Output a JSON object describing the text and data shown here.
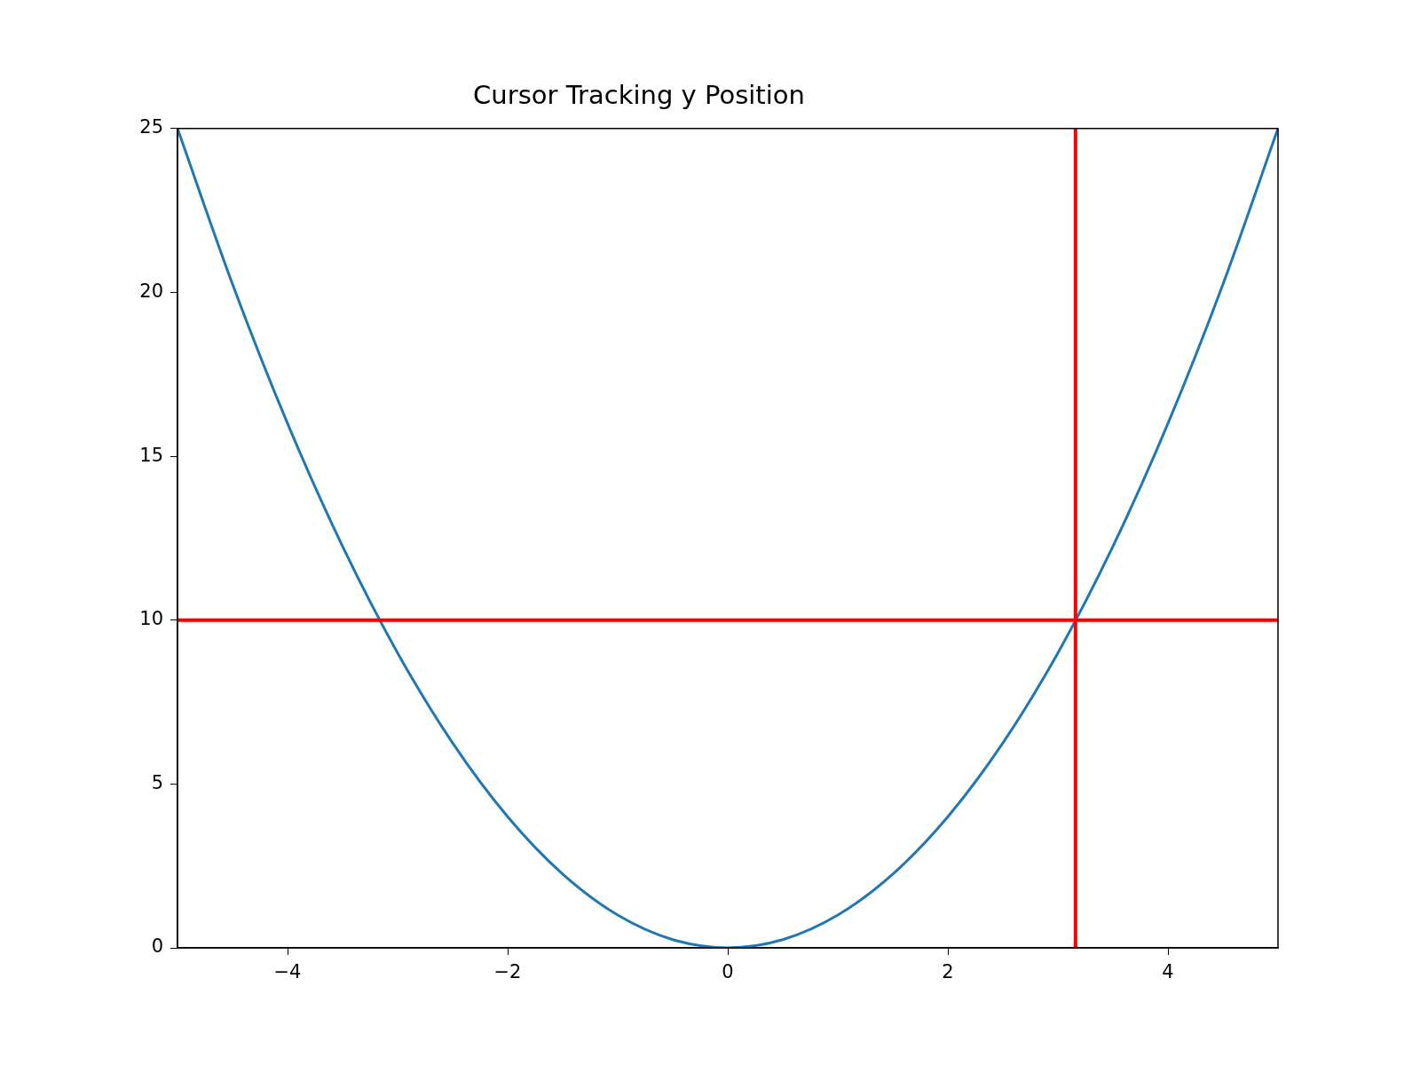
{
  "chart_data": {
    "type": "line",
    "title": "Cursor Tracking y Position",
    "x": [
      -5,
      -4.5,
      -4,
      -3.5,
      -3,
      -2.5,
      -2,
      -1.5,
      -1,
      -0.5,
      0,
      0.5,
      1,
      1.5,
      2,
      2.5,
      3,
      3.5,
      4,
      4.5,
      5
    ],
    "series": [
      {
        "color": "#1f77b4",
        "values": [
          25,
          20.25,
          16,
          12.25,
          9,
          6.25,
          4,
          2.25,
          1,
          0.25,
          0,
          0.25,
          1,
          2.25,
          4,
          6.25,
          9,
          12.25,
          16,
          20.25,
          25
        ]
      }
    ],
    "xlim": [
      -5,
      5
    ],
    "xticks": [
      {
        "value": -4,
        "label": "−4"
      },
      {
        "value": -2,
        "label": "−2"
      },
      0,
      2,
      4
    ],
    "ylim": [
      0,
      25
    ],
    "yticks": [
      0,
      5,
      10,
      15,
      20,
      25
    ],
    "ref_lines": [
      {
        "axis": "x",
        "value": 3.16,
        "color": "#ff0000"
      },
      {
        "axis": "y",
        "value": 10,
        "color": "#ff0000"
      }
    ],
    "grid": false,
    "legend": false,
    "marker": "none",
    "line_style": "solid"
  }
}
